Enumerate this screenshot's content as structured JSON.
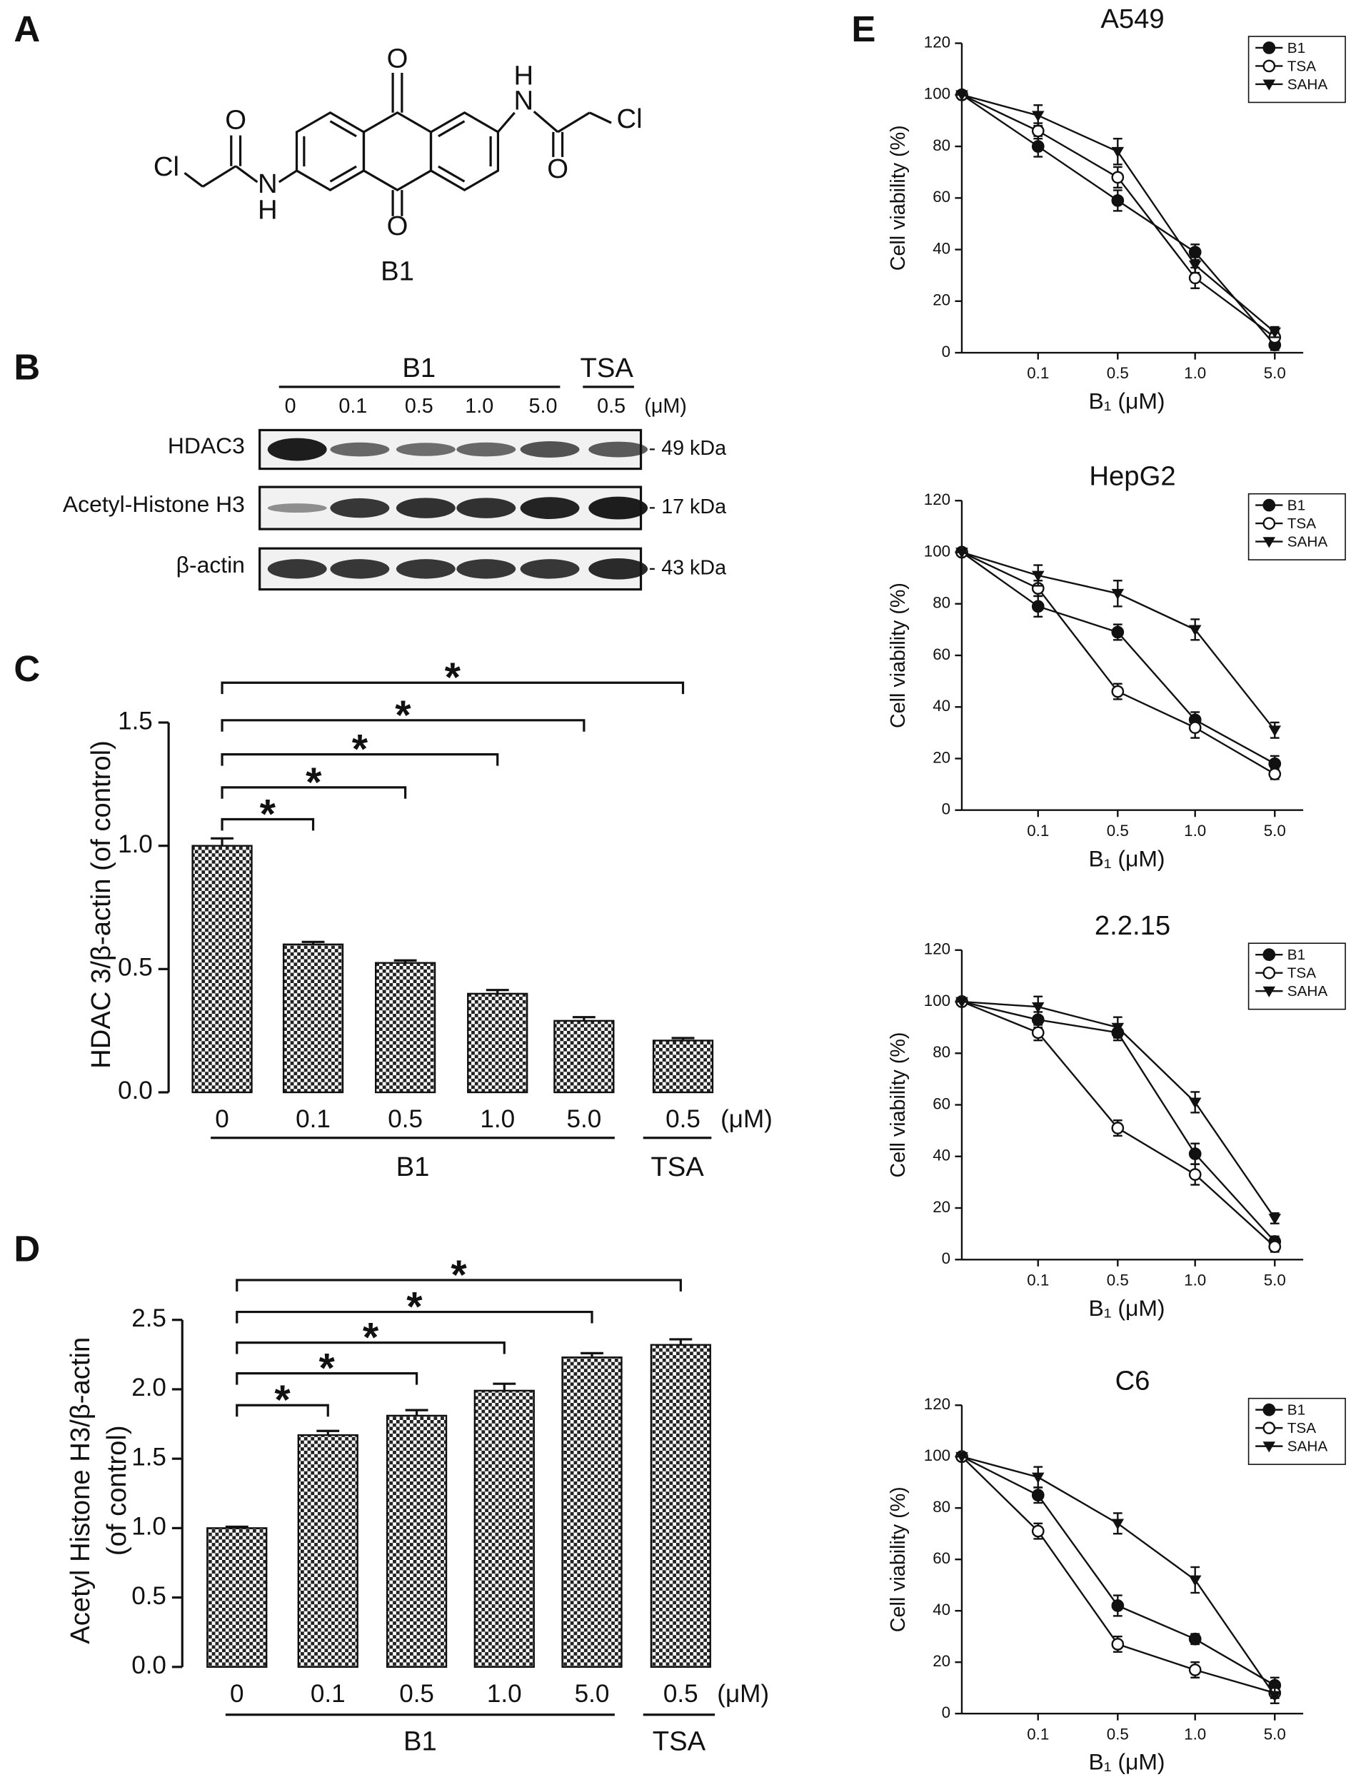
{
  "panel_labels": [
    "A",
    "B",
    "C",
    "D",
    "E"
  ],
  "structure": {
    "atoms": [
      "O",
      "O",
      "H",
      "N",
      "Cl",
      "O",
      "Cl",
      "N",
      "H",
      "O"
    ],
    "name": "B1"
  },
  "blot": {
    "group_labels": [
      "B1",
      "TSA"
    ],
    "lanes": [
      "0",
      "0.1",
      "0.5",
      "1.0",
      "5.0",
      "0.5"
    ],
    "unit": "(μM)",
    "rows": [
      {
        "label": "HDAC3",
        "size": "- 49 kDa"
      },
      {
        "label": "Acetyl-Histone H3",
        "size": "- 17 kDa"
      },
      {
        "label": "β-actin",
        "size": "- 43 kDa"
      }
    ]
  },
  "chart_data": [
    {
      "type": "bar",
      "ylabel": "HDAC 3/β-actin (of control)",
      "categories": [
        "0",
        "0.1",
        "0.5",
        "1.0",
        "5.0",
        "0.5"
      ],
      "values": [
        1.0,
        0.6,
        0.525,
        0.4,
        0.29,
        0.21
      ],
      "errors": [
        0.03,
        0.01,
        0.01,
        0.015,
        0.015,
        0.01
      ],
      "color": "#222222",
      "unit": "(μM)",
      "group_labels": [
        "B1",
        "TSA"
      ],
      "annotations": [
        "*",
        "*",
        "*",
        "*",
        "*"
      ],
      "ylim": [
        0,
        1.5
      ],
      "yticks": [
        {
          "value": 0,
          "label": "0.0"
        },
        {
          "value": 0.5,
          "label": "0.5"
        },
        {
          "value": 1,
          "label": "1.0"
        },
        {
          "value": 1.5,
          "label": "1.5"
        }
      ]
    },
    {
      "type": "bar",
      "ylabel": [
        "Acetyl  Histone H3/β-actin",
        "(of control)"
      ],
      "categories": [
        "0",
        "0.1",
        "0.5",
        "1.0",
        "5.0",
        "0.5"
      ],
      "values": [
        1.0,
        1.67,
        1.81,
        1.99,
        2.23,
        2.32
      ],
      "errors": [
        0.01,
        0.03,
        0.04,
        0.05,
        0.03,
        0.04
      ],
      "color": "#222222",
      "unit": "(μM)",
      "group_labels": [
        "B1",
        "TSA"
      ],
      "annotations": [
        "*",
        "*",
        "*",
        "*",
        "*"
      ],
      "ylim": [
        0,
        2.5
      ],
      "yticks": [
        {
          "value": 0,
          "label": "0.0"
        },
        {
          "value": 0.5,
          "label": "0.5"
        },
        {
          "value": 1,
          "label": "1.0"
        },
        {
          "value": 1.5,
          "label": "1.5"
        },
        {
          "value": 2,
          "label": "2.0"
        },
        {
          "value": 2.5,
          "label": "2.5"
        }
      ]
    },
    {
      "type": "line",
      "title": "A549",
      "xlabel": "B₁ (μM)",
      "ylabel": "Cell viability (%)",
      "categories": [
        null,
        "0.1",
        "0.5",
        "1.0",
        "5.0"
      ],
      "series": [
        {
          "name": "B1",
          "color": "#111111",
          "marker": "filled-circle",
          "values": [
            100,
            80,
            59,
            39,
            3
          ],
          "errors": [
            0,
            4,
            4,
            3,
            2
          ]
        },
        {
          "name": "TSA",
          "color": "#111111",
          "marker": "open-circle",
          "values": [
            100,
            86,
            68,
            29,
            6
          ],
          "errors": [
            0,
            3,
            4,
            4,
            2
          ]
        },
        {
          "name": "SAHA",
          "color": "#111111",
          "marker": "triangle-down",
          "values": [
            100,
            92,
            78,
            34,
            8
          ],
          "errors": [
            0,
            4,
            5,
            3,
            2
          ]
        }
      ],
      "ylim": [
        0,
        120
      ],
      "yticks": [
        0,
        20,
        40,
        60,
        80,
        100,
        120
      ],
      "legend": "upper right"
    },
    {
      "type": "line",
      "title": "HepG2",
      "xlabel": "B₁ (μM)",
      "ylabel": "Cell viability (%)",
      "categories": [
        null,
        "0.1",
        "0.5",
        "1.0",
        "5.0"
      ],
      "series": [
        {
          "name": "B1",
          "color": "#111111",
          "marker": "filled-circle",
          "values": [
            100,
            79,
            69,
            35,
            18
          ],
          "errors": [
            0,
            4,
            3,
            3,
            3
          ]
        },
        {
          "name": "TSA",
          "color": "#111111",
          "marker": "open-circle",
          "values": [
            100,
            86,
            46,
            32,
            14
          ],
          "errors": [
            0,
            3,
            3,
            4,
            2
          ]
        },
        {
          "name": "SAHA",
          "color": "#111111",
          "marker": "triangle-down",
          "values": [
            100,
            91,
            84,
            70,
            31
          ],
          "errors": [
            0,
            4,
            5,
            4,
            3
          ]
        }
      ],
      "ylim": [
        0,
        120
      ],
      "yticks": [
        0,
        20,
        40,
        60,
        80,
        100,
        120
      ],
      "legend": "upper right"
    },
    {
      "type": "line",
      "title": "2.2.15",
      "xlabel": "B₁ (μM)",
      "ylabel": "Cell viability (%)",
      "categories": [
        null,
        "0.1",
        "0.5",
        "1.0",
        "5.0"
      ],
      "series": [
        {
          "name": "B1",
          "color": "#111111",
          "marker": "filled-circle",
          "values": [
            100,
            93,
            88,
            41,
            7
          ],
          "errors": [
            0,
            3,
            3,
            4,
            2
          ]
        },
        {
          "name": "TSA",
          "color": "#111111",
          "marker": "open-circle",
          "values": [
            100,
            88,
            51,
            33,
            5
          ],
          "errors": [
            0,
            3,
            3,
            4,
            2
          ]
        },
        {
          "name": "SAHA",
          "color": "#111111",
          "marker": "triangle-down",
          "values": [
            100,
            98,
            90,
            61,
            16
          ],
          "errors": [
            0,
            4,
            4,
            4,
            2
          ]
        }
      ],
      "ylim": [
        0,
        120
      ],
      "yticks": [
        0,
        20,
        40,
        60,
        80,
        100,
        120
      ],
      "legend": "upper right"
    },
    {
      "type": "line",
      "title": "C6",
      "xlabel": "B₁ (μM)",
      "ylabel": "Cell viability (%)",
      "categories": [
        null,
        "0.1",
        "0.5",
        "1.0",
        "5.0"
      ],
      "series": [
        {
          "name": "B1",
          "color": "#111111",
          "marker": "filled-circle",
          "values": [
            100,
            85,
            42,
            29,
            11
          ],
          "errors": [
            0,
            3,
            4,
            2,
            3
          ]
        },
        {
          "name": "TSA",
          "color": "#111111",
          "marker": "open-circle",
          "values": [
            100,
            71,
            27,
            17,
            8
          ],
          "errors": [
            0,
            3,
            3,
            3,
            2
          ]
        },
        {
          "name": "SAHA",
          "color": "#111111",
          "marker": "triangle-down",
          "values": [
            100,
            92,
            74,
            52,
            7
          ],
          "errors": [
            0,
            4,
            4,
            5,
            3
          ]
        }
      ],
      "ylim": [
        0,
        120
      ],
      "yticks": [
        0,
        20,
        40,
        60,
        80,
        100,
        120
      ],
      "legend": "upper right"
    }
  ]
}
